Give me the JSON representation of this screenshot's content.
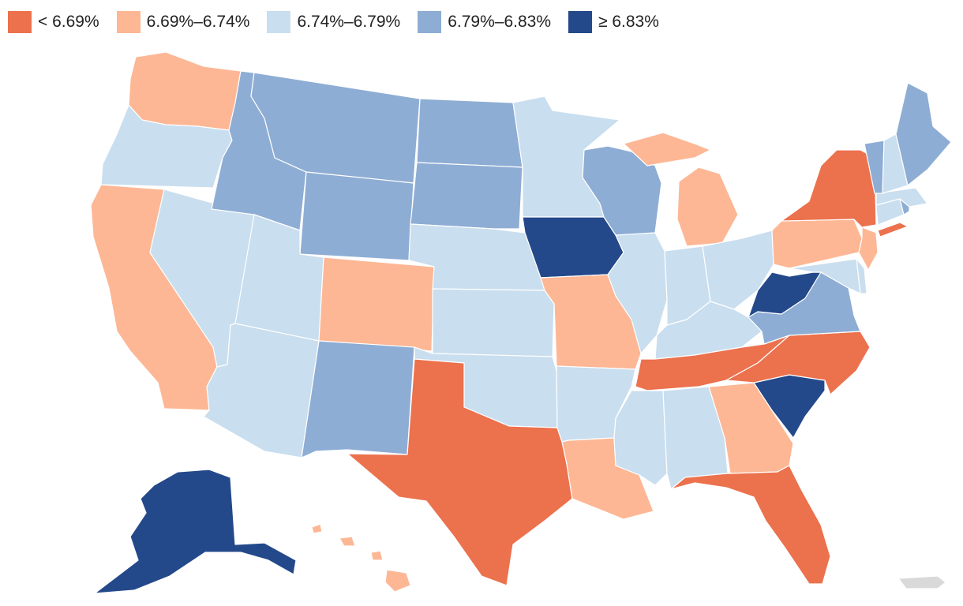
{
  "legend": [
    {
      "label": "< 6.69%",
      "color": "#ec714d"
    },
    {
      "label": "6.69%–6.74%",
      "color": "#fdb795"
    },
    {
      "label": "6.74%–6.79%",
      "color": "#c9deef"
    },
    {
      "label": "6.79%–6.83%",
      "color": "#8eadd4"
    },
    {
      "label": "≥ 6.83%",
      "color": "#24498a"
    }
  ],
  "states": {
    "WA": 1,
    "OR": 2,
    "CA": 1,
    "NV": 2,
    "ID": 3,
    "MT": 3,
    "WY": 3,
    "UT": 2,
    "AZ": 2,
    "CO": 1,
    "NM": 3,
    "ND": 3,
    "SD": 3,
    "NE": 2,
    "KS": 2,
    "OK": 2,
    "TX": 0,
    "MN": 2,
    "IA": 4,
    "MO": 1,
    "AR": 2,
    "LA": 1,
    "WI": 3,
    "IL": 2,
    "MI": 1,
    "IN": 2,
    "OH": 2,
    "KY": 2,
    "TN": 0,
    "MS": 2,
    "AL": 2,
    "GA": 1,
    "FL": 0,
    "SC": 4,
    "NC": 0,
    "VA": 3,
    "WV": 4,
    "MD": 2,
    "DE": 2,
    "NJ": 1,
    "PA": 1,
    "NY": 0,
    "CT": 2,
    "RI": 3,
    "MA": 2,
    "VT": 3,
    "NH": 2,
    "ME": 3,
    "AK": 4,
    "HI": 1,
    "PR": -1
  },
  "territory_color": "#d9d9d9"
}
